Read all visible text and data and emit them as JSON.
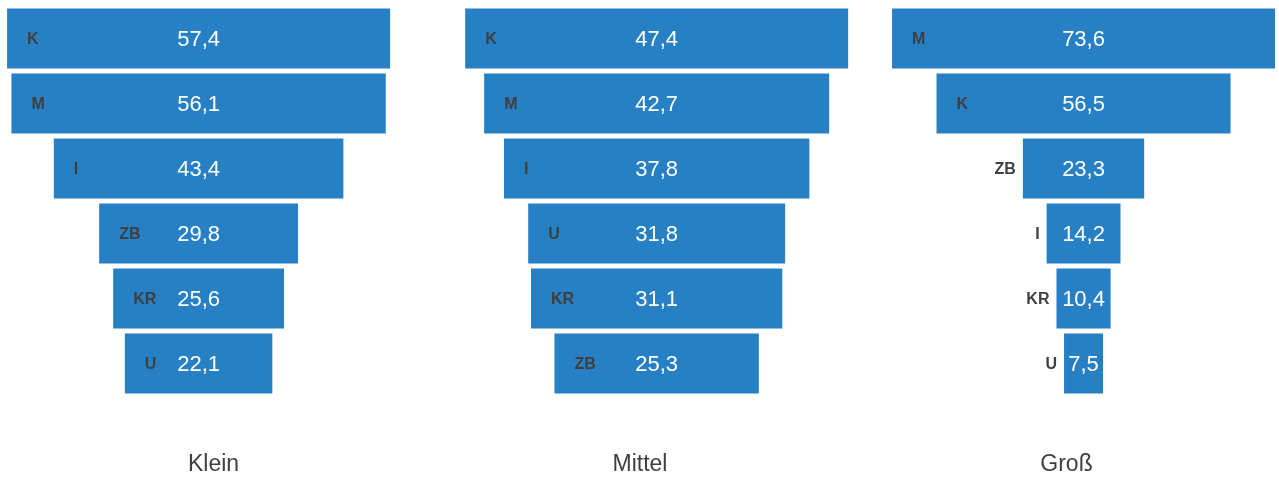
{
  "chart_data": [
    {
      "type": "other",
      "title": "Klein",
      "categories": [
        "K",
        "M",
        "I",
        "ZB",
        "KR",
        "U"
      ],
      "values": [
        57.4,
        56.1,
        43.4,
        29.8,
        25.6,
        22.1
      ],
      "value_labels": [
        "57,4",
        "56,1",
        "43,4",
        "29,8",
        "25,6",
        "22,1"
      ],
      "color": "#2780c4"
    },
    {
      "type": "other",
      "title": "Mittel",
      "categories": [
        "K",
        "M",
        "I",
        "U",
        "KR",
        "ZB"
      ],
      "values": [
        47.4,
        42.7,
        37.8,
        31.8,
        31.1,
        25.3
      ],
      "value_labels": [
        "47,4",
        "42,7",
        "37,8",
        "31,8",
        "31,1",
        "25,3"
      ],
      "color": "#2780c4"
    },
    {
      "type": "other",
      "title": "Groß",
      "categories": [
        "M",
        "K",
        "ZB",
        "I",
        "KR",
        "U"
      ],
      "values": [
        73.6,
        56.5,
        23.3,
        14.2,
        10.4,
        7.5
      ],
      "value_labels": [
        "73,6",
        "56,5",
        "23,3",
        "14,2",
        "10,4",
        "7,5"
      ],
      "color": "#2780c4"
    }
  ]
}
